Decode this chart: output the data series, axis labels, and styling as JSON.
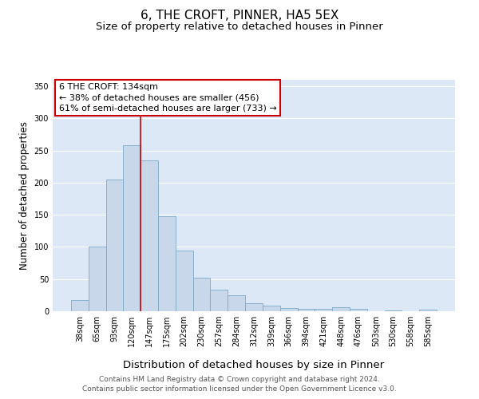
{
  "title": "6, THE CROFT, PINNER, HA5 5EX",
  "subtitle": "Size of property relative to detached houses in Pinner",
  "xlabel": "Distribution of detached houses by size in Pinner",
  "ylabel": "Number of detached properties",
  "bar_color": "#c8d8ea",
  "bar_edge_color": "#7aaac8",
  "background_color": "#ffffff",
  "plot_bg_color": "#dce8f5",
  "grid_color": "#ffffff",
  "bin_labels": [
    "38sqm",
    "65sqm",
    "93sqm",
    "120sqm",
    "147sqm",
    "175sqm",
    "202sqm",
    "230sqm",
    "257sqm",
    "284sqm",
    "312sqm",
    "339sqm",
    "366sqm",
    "394sqm",
    "421sqm",
    "448sqm",
    "476sqm",
    "503sqm",
    "530sqm",
    "558sqm",
    "585sqm"
  ],
  "bar_heights": [
    18,
    100,
    205,
    258,
    235,
    148,
    94,
    52,
    33,
    25,
    13,
    9,
    5,
    4,
    4,
    6,
    4,
    0,
    1,
    0,
    2
  ],
  "ylim": [
    0,
    360
  ],
  "yticks": [
    0,
    50,
    100,
    150,
    200,
    250,
    300,
    350
  ],
  "vline_x": 3.5,
  "annotation_title": "6 THE CROFT: 134sqm",
  "annotation_line1": "← 38% of detached houses are smaller (456)",
  "annotation_line2": "61% of semi-detached houses are larger (733) →",
  "annotation_box_color": "#ffffff",
  "annotation_box_edge": "#cc0000",
  "vline_color": "#cc0000",
  "footer_line1": "Contains HM Land Registry data © Crown copyright and database right 2024.",
  "footer_line2": "Contains public sector information licensed under the Open Government Licence v3.0.",
  "title_fontsize": 11,
  "subtitle_fontsize": 9.5,
  "xlabel_fontsize": 9.5,
  "ylabel_fontsize": 8.5,
  "tick_fontsize": 7,
  "annotation_fontsize": 8,
  "footer_fontsize": 6.5
}
